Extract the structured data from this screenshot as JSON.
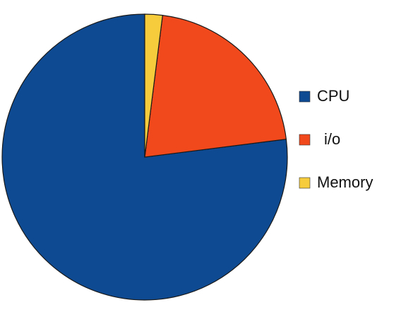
{
  "chart_data": {
    "type": "pie",
    "categories": [
      "CPU",
      "i/o",
      "Memory"
    ],
    "values": [
      77,
      21,
      2
    ],
    "colors": [
      "#0e4a92",
      "#f2491c",
      "#f6cb3c"
    ],
    "legend": "right"
  }
}
